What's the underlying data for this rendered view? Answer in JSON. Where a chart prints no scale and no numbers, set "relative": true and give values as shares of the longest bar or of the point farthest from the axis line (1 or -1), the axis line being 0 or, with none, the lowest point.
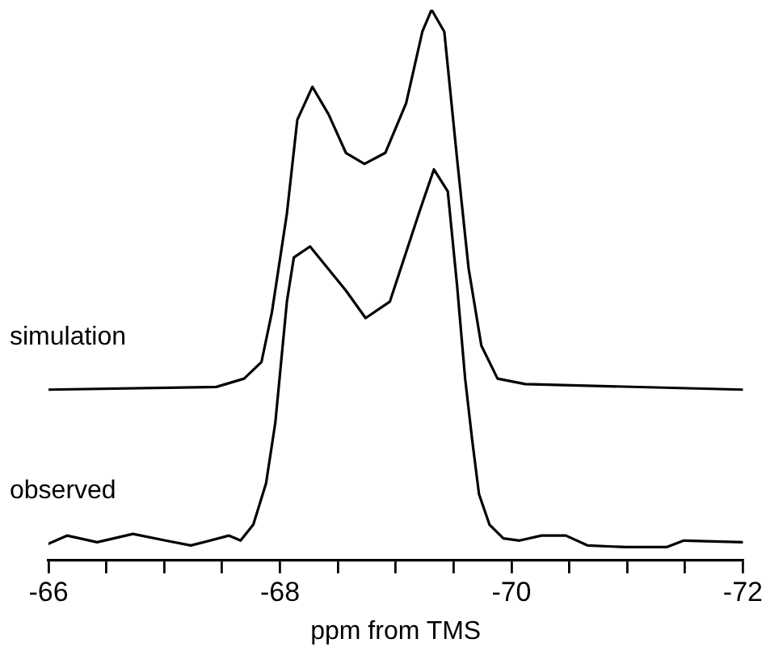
{
  "chart_data": {
    "type": "line",
    "xlabel": "ppm from TMS",
    "relative": true,
    "legend": false,
    "grid": false,
    "marker": "none",
    "line_style": "solid",
    "xlim": [
      -66,
      -72
    ],
    "xticks": [
      -66,
      {
        "value": -66.5,
        "label": null
      },
      {
        "value": -67,
        "label": null
      },
      {
        "value": -67.5,
        "label": null
      },
      -68,
      {
        "value": -68.5,
        "label": null
      },
      {
        "value": -69,
        "label": null
      },
      {
        "value": -69.5,
        "label": null
      },
      -70,
      {
        "value": -70.5,
        "label": null
      },
      {
        "value": -71,
        "label": null
      },
      {
        "value": -71.5,
        "label": null
      },
      -72
    ],
    "series": [
      {
        "name": "simulation",
        "color": "#000000",
        "x": [
          -66,
          -67.45,
          -67.69,
          -67.84,
          -67.93,
          -68.06,
          -68.15,
          -68.28,
          -68.42,
          -68.57,
          -68.73,
          -68.91,
          -69.09,
          -69.23,
          -69.31,
          -69.42,
          -69.53,
          -69.63,
          -69.74,
          -69.88,
          -70.12,
          -72
        ],
        "values": [
          0.31,
          0.315,
          0.33,
          0.36,
          0.45,
          0.63,
          0.8,
          0.86,
          0.81,
          0.74,
          0.72,
          0.74,
          0.83,
          0.96,
          1,
          0.96,
          0.73,
          0.53,
          0.39,
          0.33,
          0.32,
          0.31
        ]
      },
      {
        "name": "observed",
        "color": "#000000",
        "x": [
          -66,
          -66.16,
          -66.42,
          -66.73,
          -67.01,
          -67.23,
          -67.56,
          -67.66,
          -67.77,
          -67.88,
          -67.96,
          -68.06,
          -68.12,
          -68.26,
          -68.57,
          -68.74,
          -68.95,
          -69.2,
          -69.33,
          -69.45,
          -69.53,
          -69.6,
          -69.66,
          -69.72,
          -69.81,
          -69.93,
          -70.07,
          -70.26,
          -70.47,
          -70.66,
          -70.99,
          -71.34,
          -71.49,
          -72
        ],
        "values": [
          0.03,
          0.045,
          0.033,
          0.048,
          0.036,
          0.027,
          0.045,
          0.036,
          0.065,
          0.14,
          0.25,
          0.47,
          0.55,
          0.57,
          0.49,
          0.44,
          0.47,
          0.63,
          0.71,
          0.67,
          0.5,
          0.33,
          0.22,
          0.12,
          0.065,
          0.04,
          0.036,
          0.045,
          0.045,
          0.027,
          0.024,
          0.024,
          0.036,
          0.033
        ]
      }
    ]
  }
}
